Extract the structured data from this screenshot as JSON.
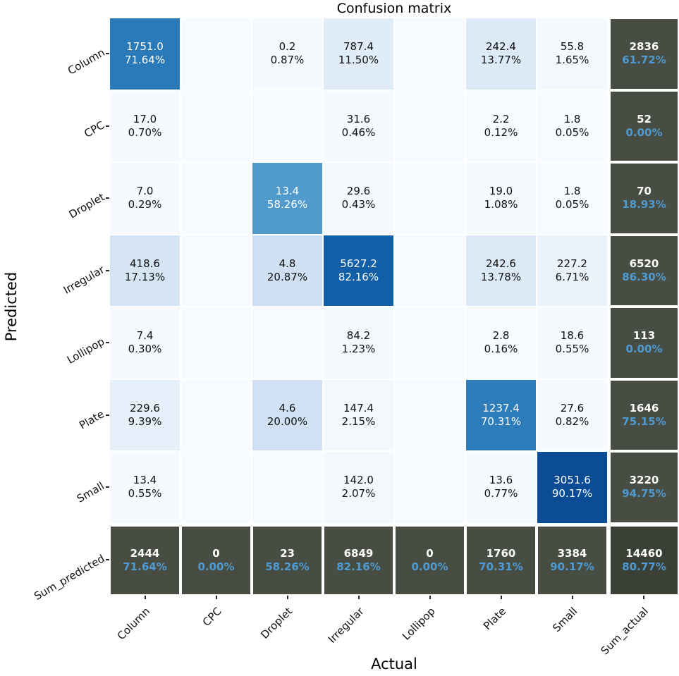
{
  "title": "Confusion matrix",
  "axes": {
    "x_title": "Actual",
    "y_title": "Predicted"
  },
  "colors": {
    "figure_bg": "#ffffff",
    "empty_cell": "#f7fbff",
    "sum_bg": "#484d43",
    "sum_corner_bg": "#3b4036",
    "sum_value": "#ffffff",
    "sum_pct": "#4e9ad2",
    "text_dark": "#111111",
    "text_light": "#ffffff",
    "tick": "#262626",
    "grid_line": "#ffffff"
  },
  "chart_data": {
    "type": "heatmap",
    "title": "Confusion matrix",
    "xlabel": "Actual",
    "ylabel": "Predicted",
    "colormap": "Blues (cell shade = percentage)",
    "legend": "none",
    "x_categories": [
      "Column",
      "CPC",
      "Droplet",
      "Irregular",
      "Lollipop",
      "Plate",
      "Small",
      "Sum_actual"
    ],
    "y_categories": [
      "Column",
      "CPC",
      "Droplet",
      "Irregular",
      "Lollipop",
      "Plate",
      "Small",
      "Sum_predicted"
    ],
    "rows": [
      {
        "label": "Column",
        "cells": [
          {
            "v": "1751.0",
            "p": "71.64%",
            "bg": "#2a7ab9",
            "light": true
          },
          {},
          {
            "v": "0.2",
            "p": "0.87%",
            "bg": "#f5fafe"
          },
          {
            "v": "787.4",
            "p": "11.50%",
            "bg": "#e0ecf8"
          },
          {},
          {
            "v": "242.4",
            "p": "13.77%",
            "bg": "#dce9f6"
          },
          {
            "v": "55.8",
            "p": "1.65%",
            "bg": "#f4f9fe"
          },
          {
            "v": "2836",
            "p": "61.72%",
            "sum": true
          }
        ]
      },
      {
        "label": "CPC",
        "cells": [
          {
            "v": "17.0",
            "p": "0.70%",
            "bg": "#f6fafe"
          },
          {},
          {},
          {
            "v": "31.6",
            "p": "0.46%",
            "bg": "#f6fafe"
          },
          {},
          {
            "v": "2.2",
            "p": "0.12%",
            "bg": "#f7fbfe"
          },
          {
            "v": "1.8",
            "p": "0.05%",
            "bg": "#f7fbff"
          },
          {
            "v": "52",
            "p": "0.00%",
            "sum": true
          }
        ]
      },
      {
        "label": "Droplet",
        "cells": [
          {
            "v": "7.0",
            "p": "0.29%",
            "bg": "#f6fafe"
          },
          {},
          {
            "v": "13.4",
            "p": "58.26%",
            "bg": "#509bcb",
            "light": true
          },
          {
            "v": "29.6",
            "p": "0.43%",
            "bg": "#f6fafe"
          },
          {},
          {
            "v": "19.0",
            "p": "1.08%",
            "bg": "#f5fafe"
          },
          {
            "v": "1.8",
            "p": "0.05%",
            "bg": "#f7fbff"
          },
          {
            "v": "70",
            "p": "18.93%",
            "sum": true
          }
        ]
      },
      {
        "label": "Irregular",
        "cells": [
          {
            "v": "418.6",
            "p": "17.13%",
            "bg": "#d5e5f4"
          },
          {},
          {
            "v": "4.8",
            "p": "20.87%",
            "bg": "#cee0f2"
          },
          {
            "v": "5627.2",
            "p": "82.16%",
            "bg": "#135fa7",
            "light": true
          },
          {},
          {
            "v": "242.6",
            "p": "13.78%",
            "bg": "#dce9f6"
          },
          {
            "v": "227.2",
            "p": "6.71%",
            "bg": "#eaf2fb"
          },
          {
            "v": "6520",
            "p": "86.30%",
            "sum": true
          }
        ]
      },
      {
        "label": "Lollipop",
        "cells": [
          {
            "v": "7.4",
            "p": "0.30%",
            "bg": "#f6fafe"
          },
          {},
          {},
          {
            "v": "84.2",
            "p": "1.23%",
            "bg": "#f4f9fe"
          },
          {},
          {
            "v": "2.8",
            "p": "0.16%",
            "bg": "#f7fbfe"
          },
          {
            "v": "18.6",
            "p": "0.55%",
            "bg": "#f6fafe"
          },
          {
            "v": "113",
            "p": "0.00%",
            "sum": true
          }
        ]
      },
      {
        "label": "Plate",
        "cells": [
          {
            "v": "229.6",
            "p": "9.39%",
            "bg": "#e6f0fa"
          },
          {},
          {
            "v": "4.6",
            "p": "20.00%",
            "bg": "#cfe1f2"
          },
          {
            "v": "147.4",
            "p": "2.15%",
            "bg": "#f3f8fd"
          },
          {},
          {
            "v": "1237.4",
            "p": "70.31%",
            "bg": "#2d7dbb",
            "light": true
          },
          {
            "v": "27.6",
            "p": "0.82%",
            "bg": "#f6fafe"
          },
          {
            "v": "1646",
            "p": "75.15%",
            "sum": true
          }
        ]
      },
      {
        "label": "Small",
        "cells": [
          {
            "v": "13.4",
            "p": "0.55%",
            "bg": "#f6fafe"
          },
          {},
          {},
          {
            "v": "142.0",
            "p": "2.07%",
            "bg": "#f3f8fd"
          },
          {},
          {
            "v": "13.6",
            "p": "0.77%",
            "bg": "#f6fafe"
          },
          {
            "v": "3051.6",
            "p": "90.17%",
            "bg": "#0a4d96",
            "light": true
          },
          {
            "v": "3220",
            "p": "94.75%",
            "sum": true
          }
        ]
      },
      {
        "label": "Sum_predicted",
        "cells": [
          {
            "v": "2444",
            "p": "71.64%",
            "sum": true
          },
          {
            "v": "0",
            "p": "0.00%",
            "sum": true
          },
          {
            "v": "23",
            "p": "58.26%",
            "sum": true
          },
          {
            "v": "6849",
            "p": "82.16%",
            "sum": true
          },
          {
            "v": "0",
            "p": "0.00%",
            "sum": true
          },
          {
            "v": "1760",
            "p": "70.31%",
            "sum": true
          },
          {
            "v": "3384",
            "p": "90.17%",
            "sum": true
          },
          {
            "v": "14460",
            "p": "80.77%",
            "sum": true,
            "corner": true
          }
        ]
      }
    ]
  }
}
